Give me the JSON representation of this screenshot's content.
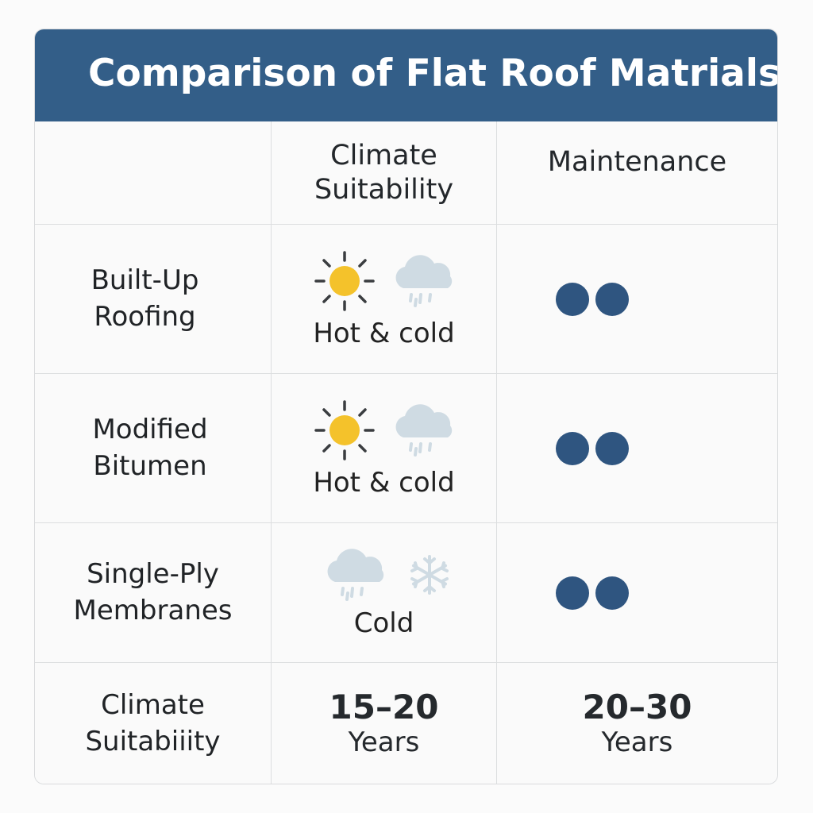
{
  "title": "Comparison of Flat Roof Matrials",
  "headers": {
    "blank": "",
    "climate": [
      "Climate",
      "Suitability"
    ],
    "maintenance": "Maintenance"
  },
  "rows": [
    {
      "name": [
        "Built-Up",
        "Roofing"
      ],
      "climate_icons": [
        "sun-icon",
        "rain-cloud-icon"
      ],
      "climate_text": "Hot & cold",
      "maintenance_dots": 2
    },
    {
      "name": [
        "Modified",
        "Bitumen"
      ],
      "climate_icons": [
        "sun-icon",
        "rain-cloud-icon"
      ],
      "climate_text": "Hot & cold",
      "maintenance_dots": 2
    },
    {
      "name": [
        "Single-Ply",
        "Membranes"
      ],
      "climate_icons": [
        "rain-cloud-icon",
        "snowflake-icon"
      ],
      "climate_text": "Cold",
      "maintenance_dots": 2
    }
  ],
  "footer": {
    "label": [
      "Climate",
      "Suitabiiity"
    ],
    "col2": {
      "value": "15–20",
      "unit": "Years"
    },
    "col3": {
      "value": "20–30",
      "unit": "Years"
    }
  },
  "colors": {
    "header_blue": "#335e88",
    "dot_blue": "#2f5580",
    "sun_yellow": "#f4c22b",
    "cloud_gray": "#cfdbe3"
  }
}
